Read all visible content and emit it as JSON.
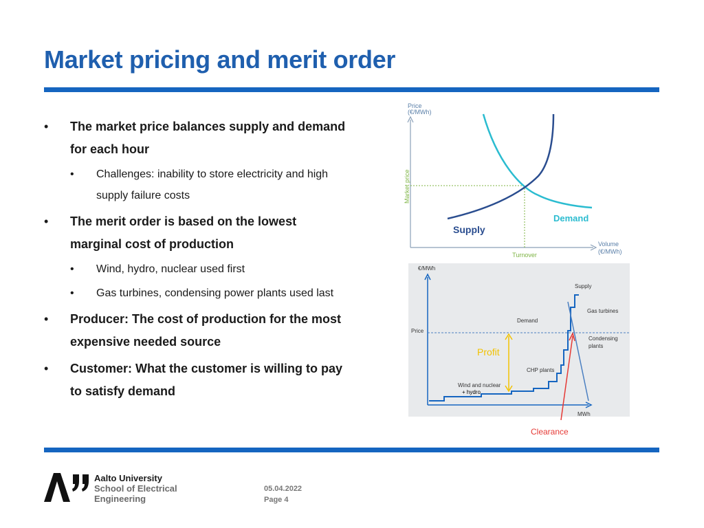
{
  "slide": {
    "title": "Market pricing and merit order",
    "bullets": [
      {
        "text": "The market price balances supply and demand for each hour",
        "sub": [
          "Challenges: inability to store electricity and high supply failure costs"
        ]
      },
      {
        "text": "The merit order is based on the lowest marginal cost of production",
        "sub": [
          "Wind, hydro, nuclear used first",
          "Gas turbines, condensing power plants used last"
        ]
      },
      {
        "text": "Producer: The cost of production for the most expensive needed source",
        "sub": []
      },
      {
        "text": "Customer: What the customer is willing to pay to satisfy demand",
        "sub": []
      }
    ]
  },
  "figure_supply_demand": {
    "y_axis_label_1": "Price",
    "y_axis_label_2": "(€/MWh)",
    "market_price_label": "Market price",
    "supply_label": "Supply",
    "demand_label": "Demand",
    "turnover_label": "Turnover",
    "x_axis_label_1": "Volume",
    "x_axis_label_2": "(€/MWh)",
    "colors": {
      "supply": "#2a4d8f",
      "demand": "#2bbcd0",
      "guide": "#7cb342"
    }
  },
  "figure_merit_order": {
    "y_axis_label": "€/MWh",
    "x_axis_label": "MWh",
    "price_label": "Price",
    "supply_label": "Supply",
    "demand_label": "Demand",
    "gas_turbines_label": "Gas turbines",
    "condensing_label_1": "Condensing",
    "condensing_label_2": "plants",
    "chp_label": "CHP plants",
    "wind_nuclear_label": "Wind and nuclear",
    "hydro_label": "+ hydro",
    "profit_label": "Profit",
    "clearance_label": "Clearance",
    "colors": {
      "supply": "#1565c0",
      "profit": "#f2c200",
      "clearance": "#e53935"
    }
  },
  "footer": {
    "university_line1": "Aalto University",
    "university_line2": "School of Electrical",
    "university_line3": "Engineering",
    "date": "05.04.2022",
    "page": "Page 4"
  }
}
